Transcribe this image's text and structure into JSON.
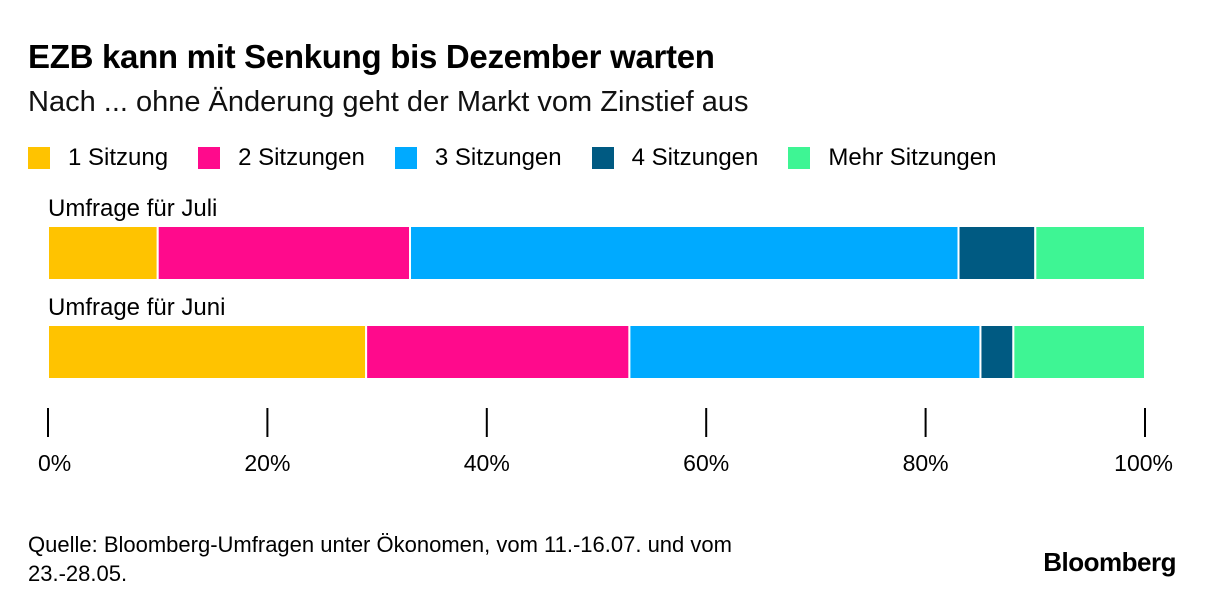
{
  "title": "EZB kann mit Senkung bis Dezember warten",
  "subtitle": "Nach ... ohne Änderung geht der Markt vom Zinstief aus",
  "legend": [
    {
      "label": "1 Sitzung",
      "color": "#FFC300"
    },
    {
      "label": "2 Sitzungen",
      "color": "#FF0A8C"
    },
    {
      "label": "3 Sitzungen",
      "color": "#00AAFF"
    },
    {
      "label": "4 Sitzungen",
      "color": "#005A82"
    },
    {
      "label": "Mehr Sitzungen",
      "color": "#3EF594"
    }
  ],
  "chart_data": {
    "type": "bar",
    "orientation": "horizontal",
    "stacked": true,
    "categories": [
      "Umfrage für Juli",
      "Umfrage für Juni"
    ],
    "series": [
      {
        "name": "1 Sitzung",
        "values": [
          10,
          29
        ]
      },
      {
        "name": "2 Sitzungen",
        "values": [
          23,
          24
        ]
      },
      {
        "name": "3 Sitzungen",
        "values": [
          50,
          32
        ]
      },
      {
        "name": "4 Sitzungen",
        "values": [
          7,
          3
        ]
      },
      {
        "name": "Mehr Sitzungen",
        "values": [
          10,
          12
        ]
      }
    ],
    "xlim": [
      0,
      100
    ],
    "xticks": [
      "0%",
      "20%",
      "40%",
      "60%",
      "80%",
      "100%"
    ],
    "legend_position": "top",
    "grid": false
  },
  "footnote": "Quelle: Bloomberg-Umfragen unter Ökonomen, vom 11.-16.07. und vom 23.-28.05.",
  "brand": "Bloomberg"
}
